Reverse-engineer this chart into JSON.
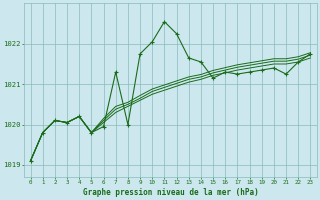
{
  "title": "Graphe pression niveau de la mer (hPa)",
  "xlim": [
    -0.5,
    23.5
  ],
  "ylim": [
    1018.7,
    1023.0
  ],
  "yticks": [
    1019,
    1020,
    1021,
    1022
  ],
  "xticks": [
    0,
    1,
    2,
    3,
    4,
    5,
    6,
    7,
    8,
    9,
    10,
    11,
    12,
    13,
    14,
    15,
    16,
    17,
    18,
    19,
    20,
    21,
    22,
    23
  ],
  "background_color": "#cce8ee",
  "grid_color": "#88bbbb",
  "line_color": "#1a6b1a",
  "title_color": "#1a6b1a",
  "hours": [
    0,
    1,
    2,
    3,
    4,
    5,
    6,
    7,
    8,
    9,
    10,
    11,
    12,
    13,
    14,
    15,
    16,
    17,
    18,
    19,
    20,
    21,
    22,
    23
  ],
  "pressure1": [
    1019.1,
    1019.8,
    1020.1,
    1020.05,
    1020.2,
    1019.8,
    1019.95,
    1021.3,
    1020.0,
    1021.75,
    1022.05,
    1022.55,
    1022.25,
    1021.65,
    1021.55,
    1021.15,
    1021.3,
    1021.25,
    1021.3,
    1021.35,
    1021.4,
    1021.25,
    1021.55,
    1021.75
  ],
  "pressure2": [
    1019.1,
    1019.8,
    1020.1,
    1020.05,
    1020.2,
    1019.8,
    1020.05,
    1020.3,
    1020.45,
    1020.6,
    1020.75,
    1020.85,
    1020.95,
    1021.05,
    1021.12,
    1021.22,
    1021.28,
    1021.35,
    1021.4,
    1021.45,
    1021.5,
    1021.5,
    1021.55,
    1021.65
  ],
  "pressure3": [
    1019.1,
    1019.8,
    1020.1,
    1020.05,
    1020.2,
    1019.8,
    1020.1,
    1020.38,
    1020.5,
    1020.65,
    1020.82,
    1020.92,
    1021.02,
    1021.12,
    1021.18,
    1021.28,
    1021.35,
    1021.42,
    1021.47,
    1021.52,
    1021.57,
    1021.57,
    1021.62,
    1021.72
  ],
  "pressure4": [
    1019.1,
    1019.8,
    1020.1,
    1020.05,
    1020.2,
    1019.8,
    1020.15,
    1020.45,
    1020.55,
    1020.72,
    1020.88,
    1020.98,
    1021.08,
    1021.18,
    1021.24,
    1021.34,
    1021.41,
    1021.48,
    1021.53,
    1021.58,
    1021.63,
    1021.63,
    1021.68,
    1021.78
  ]
}
